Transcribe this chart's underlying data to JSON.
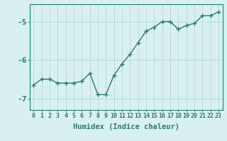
{
  "x": [
    0,
    1,
    2,
    3,
    4,
    5,
    6,
    7,
    8,
    9,
    10,
    11,
    12,
    13,
    14,
    15,
    16,
    17,
    18,
    19,
    20,
    21,
    22,
    23
  ],
  "y": [
    -6.65,
    -6.5,
    -6.5,
    -6.6,
    -6.6,
    -6.6,
    -6.55,
    -6.35,
    -6.9,
    -6.9,
    -6.4,
    -6.1,
    -5.85,
    -5.55,
    -5.25,
    -5.15,
    -5.0,
    -5.0,
    -5.2,
    -5.1,
    -5.05,
    -4.85,
    -4.85,
    -4.75
  ],
  "line_color": "#2d7a6e",
  "marker": "+",
  "marker_size": 4,
  "bg_color": "#d8f0ef",
  "grid_color": "#b8dcd8",
  "axis_color": "#2d7a6e",
  "xlabel": "Humidex (Indice chaleur)",
  "xlim": [
    -0.5,
    23.5
  ],
  "ylim": [
    -7.3,
    -4.55
  ],
  "yticks": [
    -7,
    -6,
    -5
  ],
  "xtick_labels": [
    "0",
    "1",
    "2",
    "3",
    "4",
    "5",
    "6",
    "7",
    "8",
    "9",
    "10",
    "11",
    "12",
    "13",
    "14",
    "15",
    "16",
    "17",
    "18",
    "19",
    "20",
    "21",
    "22",
    "23"
  ],
  "linewidth": 1.0,
  "font_size": 7,
  "xlabel_fontsize": 7.5
}
